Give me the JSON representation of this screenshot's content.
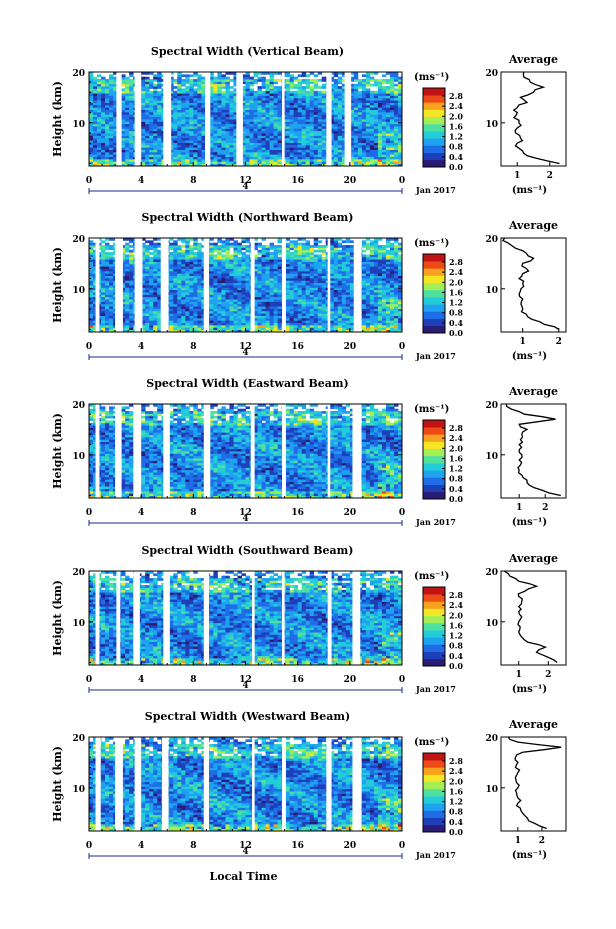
{
  "panels": [
    {
      "title": "Spectral Width (Vertical Beam)"
    },
    {
      "title": "Spectral Width (Northward Beam)"
    },
    {
      "title": "Spectral Width (Eastward Beam)"
    },
    {
      "title": "Spectral Width (Southward Beam)"
    },
    {
      "title": "Spectral Width (Westward Beam)"
    }
  ],
  "ylabel": "Height (km)",
  "xlabel": "Local Time",
  "date_label": "Jan 2017",
  "day_marker": "4",
  "avg_title": "Average",
  "avg_xlabel": "(ms⁻¹)",
  "colorbar_unit": "(ms⁻¹)",
  "colorbar_ticks": [
    "2.8",
    "2.4",
    "2.0",
    "1.6",
    "1.2",
    "0.8",
    "0.4",
    "0.0"
  ],
  "colorbar_colors": [
    "#2a1b74",
    "#1f3fb8",
    "#1e6de6",
    "#1fa2f0",
    "#22cdd8",
    "#4fe0a0",
    "#a5ee55",
    "#f4e624",
    "#f8a11c",
    "#ee4a18",
    "#c01313"
  ],
  "x_ticks": [
    "0",
    "4",
    "8",
    "12",
    "16",
    "20",
    "0"
  ],
  "y_ticks": [
    "20",
    "10"
  ],
  "chart_data": [
    {
      "type": "heatmap",
      "title": "Spectral Width (Vertical Beam)",
      "xlim": [
        0,
        24
      ],
      "ylim": [
        1.5,
        20
      ],
      "gaps": [
        [
          2.1,
          2.5
        ],
        [
          3.5,
          4.0
        ],
        [
          5.7,
          6.3
        ],
        [
          8.9,
          9.3
        ],
        [
          11.3,
          11.8
        ],
        [
          14.8,
          15.0
        ],
        [
          18.2,
          18.6
        ],
        [
          19.6,
          20.1
        ]
      ],
      "avg": {
        "xticks": [
          "1",
          "2"
        ],
        "xlim": [
          0.5,
          2.5
        ],
        "profile": [
          [
            2.3,
            2
          ],
          [
            1.6,
            3
          ],
          [
            1.2,
            4
          ],
          [
            1.05,
            5
          ],
          [
            1.0,
            6
          ],
          [
            1.1,
            7
          ],
          [
            0.95,
            8
          ],
          [
            1.0,
            9
          ],
          [
            1.05,
            10
          ],
          [
            0.9,
            11
          ],
          [
            1.0,
            12
          ],
          [
            1.0,
            13
          ],
          [
            1.3,
            14
          ],
          [
            1.1,
            15
          ],
          [
            1.5,
            16
          ],
          [
            1.8,
            17
          ],
          [
            1.4,
            18
          ],
          [
            1.2,
            19
          ],
          [
            1.2,
            20
          ]
        ]
      }
    },
    {
      "type": "heatmap",
      "title": "Spectral Width (Northward Beam)",
      "xlim": [
        0,
        24
      ],
      "ylim": [
        1.5,
        20
      ],
      "gaps": [
        [
          0.5,
          0.8
        ],
        [
          2.0,
          2.6
        ],
        [
          3.5,
          4.1
        ],
        [
          5.5,
          6.1
        ],
        [
          8.8,
          9.2
        ],
        [
          12.4,
          12.7
        ],
        [
          14.8,
          15.1
        ],
        [
          18.3,
          18.5
        ],
        [
          20.3,
          20.9
        ]
      ],
      "avg": {
        "xticks": [
          "1",
          "2"
        ],
        "xlim": [
          0.4,
          2.2
        ],
        "profile": [
          [
            2.0,
            2
          ],
          [
            1.6,
            3
          ],
          [
            1.25,
            4
          ],
          [
            1.1,
            5
          ],
          [
            1.0,
            6
          ],
          [
            0.95,
            7
          ],
          [
            1.0,
            8
          ],
          [
            0.9,
            9
          ],
          [
            0.95,
            10
          ],
          [
            1.0,
            11
          ],
          [
            0.9,
            12
          ],
          [
            1.0,
            13
          ],
          [
            1.1,
            14
          ],
          [
            1.0,
            15
          ],
          [
            1.3,
            16
          ],
          [
            1.1,
            17
          ],
          [
            0.8,
            18
          ],
          [
            0.6,
            19
          ],
          [
            0.5,
            20
          ]
        ]
      }
    },
    {
      "type": "heatmap",
      "title": "Spectral Width (Eastward Beam)",
      "xlim": [
        0,
        24
      ],
      "ylim": [
        1.5,
        20
      ],
      "gaps": [
        [
          0.5,
          0.8
        ],
        [
          2.0,
          2.5
        ],
        [
          3.4,
          4.0
        ],
        [
          5.7,
          6.2
        ],
        [
          8.8,
          9.3
        ],
        [
          12.4,
          12.7
        ],
        [
          14.8,
          15.1
        ],
        [
          18.3,
          18.5
        ],
        [
          20.2,
          20.9
        ]
      ],
      "avg": {
        "xticks": [
          "1",
          "2"
        ],
        "xlim": [
          0.3,
          2.8
        ],
        "profile": [
          [
            2.6,
            2
          ],
          [
            1.9,
            3
          ],
          [
            1.4,
            4
          ],
          [
            1.3,
            5
          ],
          [
            1.1,
            6
          ],
          [
            1.0,
            7
          ],
          [
            1.05,
            8
          ],
          [
            1.0,
            9
          ],
          [
            1.1,
            10
          ],
          [
            1.0,
            11
          ],
          [
            1.0,
            12
          ],
          [
            1.05,
            13
          ],
          [
            1.1,
            14
          ],
          [
            1.3,
            15
          ],
          [
            1.0,
            16
          ],
          [
            2.4,
            17
          ],
          [
            1.2,
            18
          ],
          [
            0.7,
            19
          ],
          [
            0.5,
            20
          ]
        ]
      }
    },
    {
      "type": "heatmap",
      "title": "Spectral Width (Southward Beam)",
      "xlim": [
        0,
        24
      ],
      "ylim": [
        1.5,
        20
      ],
      "gaps": [
        [
          0.5,
          0.8
        ],
        [
          2.1,
          2.4
        ],
        [
          3.4,
          3.9
        ],
        [
          5.7,
          6.2
        ],
        [
          8.8,
          9.2
        ],
        [
          12.5,
          12.7
        ],
        [
          14.8,
          15.0
        ],
        [
          18.3,
          18.6
        ],
        [
          20.2,
          20.8
        ]
      ],
      "avg": {
        "xticks": [
          "1",
          "2"
        ],
        "xlim": [
          0.4,
          2.6
        ],
        "profile": [
          [
            2.3,
            2
          ],
          [
            2.0,
            3
          ],
          [
            1.6,
            4
          ],
          [
            1.9,
            5
          ],
          [
            1.3,
            6
          ],
          [
            1.1,
            7
          ],
          [
            1.0,
            8
          ],
          [
            1.05,
            9
          ],
          [
            1.0,
            10
          ],
          [
            1.1,
            11
          ],
          [
            1.0,
            12
          ],
          [
            1.0,
            13
          ],
          [
            1.1,
            14
          ],
          [
            1.0,
            15
          ],
          [
            1.2,
            16
          ],
          [
            1.6,
            17
          ],
          [
            1.0,
            18
          ],
          [
            0.7,
            19
          ],
          [
            0.5,
            20
          ]
        ]
      }
    },
    {
      "type": "heatmap",
      "title": "Spectral Width (Westward Beam)",
      "xlim": [
        0,
        24
      ],
      "ylim": [
        1.5,
        20
      ],
      "gaps": [
        [
          0.5,
          0.9
        ],
        [
          2.0,
          2.6
        ],
        [
          3.5,
          4.0
        ],
        [
          5.6,
          6.1
        ],
        [
          8.8,
          9.2
        ],
        [
          12.5,
          12.7
        ],
        [
          14.8,
          15.1
        ],
        [
          18.2,
          18.6
        ],
        [
          20.2,
          20.9
        ]
      ],
      "avg": {
        "xticks": [
          "1",
          "2"
        ],
        "xlim": [
          0.3,
          3.0
        ],
        "profile": [
          [
            2.2,
            2
          ],
          [
            1.7,
            3
          ],
          [
            1.4,
            4
          ],
          [
            1.2,
            5
          ],
          [
            1.1,
            6
          ],
          [
            1.0,
            7
          ],
          [
            1.0,
            8
          ],
          [
            0.95,
            9
          ],
          [
            1.0,
            10
          ],
          [
            0.95,
            11
          ],
          [
            0.9,
            12
          ],
          [
            1.0,
            13
          ],
          [
            0.9,
            14
          ],
          [
            1.0,
            15
          ],
          [
            0.9,
            16
          ],
          [
            1.2,
            17
          ],
          [
            2.8,
            18
          ],
          [
            1.0,
            19
          ],
          [
            0.6,
            20
          ]
        ]
      }
    }
  ]
}
